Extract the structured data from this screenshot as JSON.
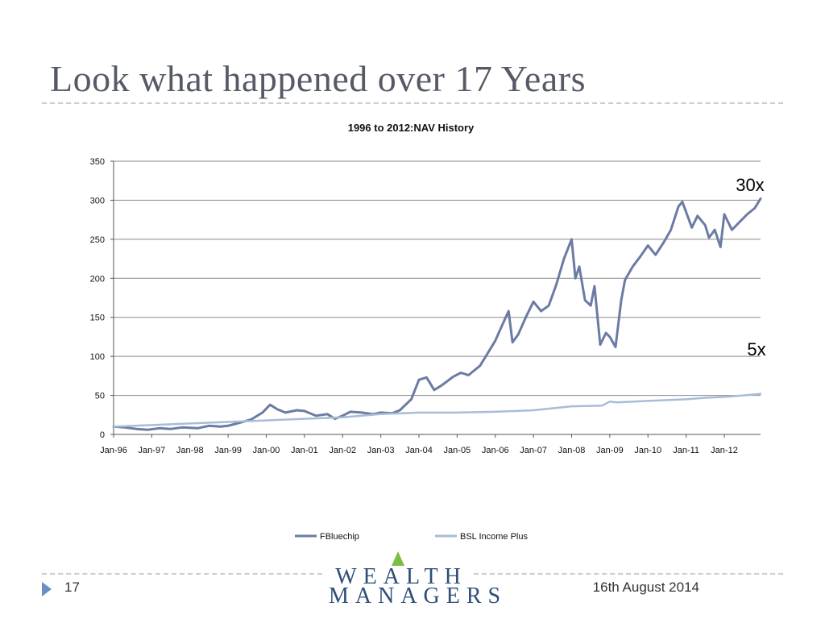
{
  "slide": {
    "title": "Look what happened over 17 Years",
    "number": "17",
    "date": "16th August 2014",
    "logo_line1": "WEALTH",
    "logo_line2": "MANAGERS"
  },
  "colors": {
    "fbluechip": "#6b7ba3",
    "bsl": "#a7bdd6",
    "grid": "#8a8a8a",
    "logo_blue": "#2e4e78",
    "logo_green": "#7cbd43"
  },
  "chart_data": {
    "type": "line",
    "title": "1996 to 2012:NAV History",
    "xlabel": "",
    "ylabel": "",
    "ylim": [
      0,
      350
    ],
    "yticks": [
      0,
      50,
      100,
      150,
      200,
      250,
      300,
      350
    ],
    "xlim": [
      1996.0,
      2012.95
    ],
    "xticks": [
      {
        "x": 1996,
        "label": "Jan-96"
      },
      {
        "x": 1997,
        "label": "Jan-97"
      },
      {
        "x": 1998,
        "label": "Jan-98"
      },
      {
        "x": 1999,
        "label": "Jan-99"
      },
      {
        "x": 2000,
        "label": "Jan-00"
      },
      {
        "x": 2001,
        "label": "Jan-01"
      },
      {
        "x": 2002,
        "label": "Jan-02"
      },
      {
        "x": 2003,
        "label": "Jan-03"
      },
      {
        "x": 2004,
        "label": "Jan-04"
      },
      {
        "x": 2005,
        "label": "Jan-05"
      },
      {
        "x": 2006,
        "label": "Jan-06"
      },
      {
        "x": 2007,
        "label": "Jan-07"
      },
      {
        "x": 2008,
        "label": "Jan-08"
      },
      {
        "x": 2009,
        "label": "Jan-09"
      },
      {
        "x": 2010,
        "label": "Jan-10"
      },
      {
        "x": 2011,
        "label": "Jan-11"
      },
      {
        "x": 2012,
        "label": "Jan-12"
      }
    ],
    "grid": true,
    "legend_position": "bottom",
    "annotations": [
      {
        "text": "30x",
        "x": 2012.3,
        "y": 312
      },
      {
        "text": "5x",
        "x": 2012.6,
        "y": 101
      }
    ],
    "series": [
      {
        "name": "FBluechip",
        "points": [
          [
            1996.0,
            10
          ],
          [
            1996.3,
            9
          ],
          [
            1996.6,
            7
          ],
          [
            1996.9,
            6
          ],
          [
            1997.2,
            8
          ],
          [
            1997.5,
            7
          ],
          [
            1997.8,
            9
          ],
          [
            1998.2,
            8
          ],
          [
            1998.5,
            11
          ],
          [
            1998.8,
            10
          ],
          [
            1999.0,
            11
          ],
          [
            1999.3,
            15
          ],
          [
            1999.6,
            19
          ],
          [
            1999.9,
            28
          ],
          [
            2000.1,
            38
          ],
          [
            2000.3,
            32
          ],
          [
            2000.5,
            28
          ],
          [
            2000.8,
            31
          ],
          [
            2001.0,
            30
          ],
          [
            2001.3,
            24
          ],
          [
            2001.6,
            26
          ],
          [
            2001.8,
            20
          ],
          [
            2002.0,
            24
          ],
          [
            2002.2,
            29
          ],
          [
            2002.5,
            28
          ],
          [
            2002.8,
            26
          ],
          [
            2003.0,
            28
          ],
          [
            2003.3,
            27
          ],
          [
            2003.5,
            31
          ],
          [
            2003.8,
            45
          ],
          [
            2004.0,
            70
          ],
          [
            2004.2,
            73
          ],
          [
            2004.4,
            57
          ],
          [
            2004.6,
            63
          ],
          [
            2004.9,
            74
          ],
          [
            2005.1,
            79
          ],
          [
            2005.3,
            76
          ],
          [
            2005.6,
            88
          ],
          [
            2005.8,
            104
          ],
          [
            2006.0,
            120
          ],
          [
            2006.2,
            142
          ],
          [
            2006.35,
            158
          ],
          [
            2006.45,
            118
          ],
          [
            2006.6,
            128
          ],
          [
            2006.8,
            150
          ],
          [
            2007.0,
            170
          ],
          [
            2007.2,
            158
          ],
          [
            2007.4,
            165
          ],
          [
            2007.6,
            192
          ],
          [
            2007.8,
            225
          ],
          [
            2008.0,
            250
          ],
          [
            2008.1,
            200
          ],
          [
            2008.2,
            215
          ],
          [
            2008.35,
            172
          ],
          [
            2008.5,
            165
          ],
          [
            2008.6,
            190
          ],
          [
            2008.75,
            115
          ],
          [
            2008.9,
            130
          ],
          [
            2009.0,
            125
          ],
          [
            2009.15,
            112
          ],
          [
            2009.3,
            172
          ],
          [
            2009.4,
            198
          ],
          [
            2009.6,
            215
          ],
          [
            2009.8,
            228
          ],
          [
            2010.0,
            242
          ],
          [
            2010.2,
            230
          ],
          [
            2010.4,
            245
          ],
          [
            2010.6,
            262
          ],
          [
            2010.8,
            292
          ],
          [
            2010.9,
            298
          ],
          [
            2011.0,
            285
          ],
          [
            2011.15,
            265
          ],
          [
            2011.3,
            280
          ],
          [
            2011.5,
            268
          ],
          [
            2011.6,
            252
          ],
          [
            2011.75,
            262
          ],
          [
            2011.9,
            240
          ],
          [
            2012.0,
            282
          ],
          [
            2012.2,
            262
          ],
          [
            2012.4,
            272
          ],
          [
            2012.6,
            282
          ],
          [
            2012.8,
            290
          ],
          [
            2012.95,
            302
          ]
        ]
      },
      {
        "name": "BSL Income Plus",
        "points": [
          [
            1996.0,
            10
          ],
          [
            1997.0,
            12
          ],
          [
            1998.0,
            14
          ],
          [
            1999.0,
            16
          ],
          [
            2000.0,
            18
          ],
          [
            2001.0,
            20
          ],
          [
            2002.0,
            22
          ],
          [
            2003.0,
            26
          ],
          [
            2004.0,
            28
          ],
          [
            2005.0,
            28
          ],
          [
            2006.0,
            29
          ],
          [
            2007.0,
            31
          ],
          [
            2007.8,
            35
          ],
          [
            2008.0,
            36
          ],
          [
            2008.8,
            37
          ],
          [
            2009.0,
            42
          ],
          [
            2009.2,
            41
          ],
          [
            2010.0,
            43
          ],
          [
            2011.0,
            45
          ],
          [
            2011.5,
            47
          ],
          [
            2012.0,
            48
          ],
          [
            2012.5,
            50
          ],
          [
            2012.95,
            52
          ]
        ]
      }
    ]
  }
}
